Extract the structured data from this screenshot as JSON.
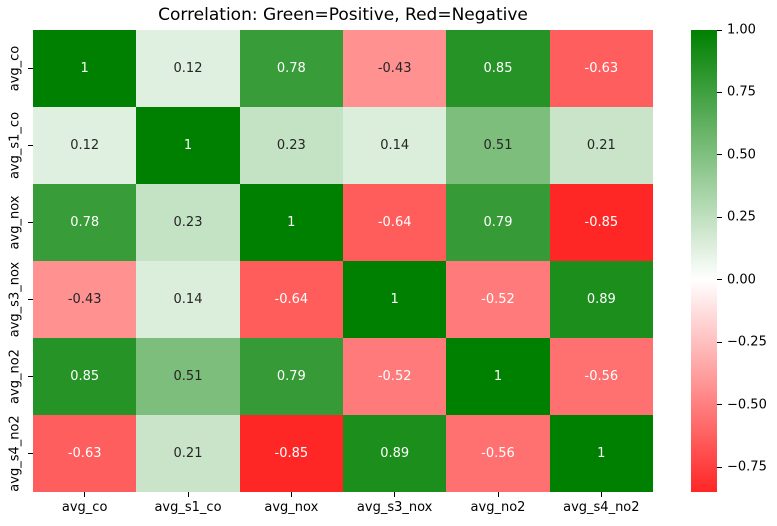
{
  "chart_data": {
    "type": "heatmap",
    "title": "Correlation: Green=Positive, Red=Negative",
    "row_labels": [
      "avg_co",
      "avg_s1_co",
      "avg_nox",
      "avg_s3_nox",
      "avg_no2",
      "avg_s4_no2"
    ],
    "col_labels": [
      "avg_co",
      "avg_s1_co",
      "avg_nox",
      "avg_s3_nox",
      "avg_no2",
      "avg_s4_no2"
    ],
    "matrix": [
      [
        1,
        0.12,
        0.78,
        -0.43,
        0.85,
        -0.63
      ],
      [
        0.12,
        1,
        0.23,
        0.14,
        0.51,
        0.21
      ],
      [
        0.78,
        0.23,
        1,
        -0.64,
        0.79,
        -0.85
      ],
      [
        -0.43,
        0.14,
        -0.64,
        1,
        -0.52,
        0.89
      ],
      [
        0.85,
        0.51,
        0.79,
        -0.52,
        1,
        -0.56
      ],
      [
        -0.63,
        0.21,
        -0.85,
        0.89,
        -0.56,
        1
      ]
    ],
    "vmin": -0.85,
    "vmax": 1.0,
    "colormap": {
      "negative_end": "#ff0000",
      "center": "#ffffff",
      "positive_end": "#008000",
      "norm_range": [
        -1,
        1
      ]
    },
    "annotation_colors": {
      "light": "#ffffff",
      "dark": "#262626"
    },
    "colorbar": {
      "position": "right",
      "ticks": [
        {
          "value": 1.0,
          "label": "1.00"
        },
        {
          "value": 0.75,
          "label": "0.75"
        },
        {
          "value": 0.5,
          "label": "0.50"
        },
        {
          "value": 0.25,
          "label": "0.25"
        },
        {
          "value": 0.0,
          "label": "0.00"
        },
        {
          "value": -0.25,
          "label": "−0.25"
        },
        {
          "value": -0.5,
          "label": "−0.50"
        },
        {
          "value": -0.75,
          "label": "−0.75"
        }
      ]
    }
  }
}
